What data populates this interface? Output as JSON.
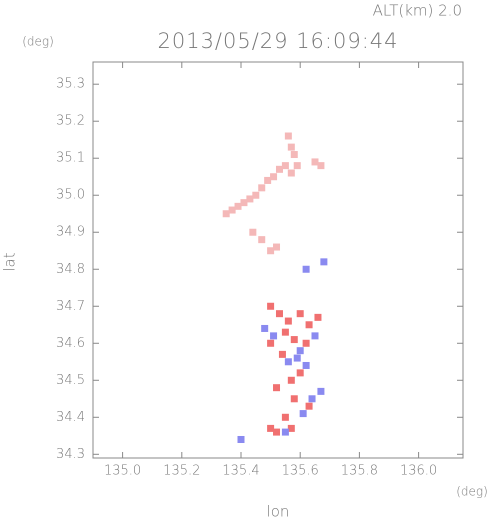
{
  "chart_data": {
    "type": "scatter",
    "title": "2013/05/29 16:09:44",
    "subtitle": "ALT(km) 2.0",
    "x_label": "lon",
    "y_label": "lat",
    "x_unit": "(deg)",
    "y_unit": "(deg)",
    "xlim": [
      134.9,
      136.15
    ],
    "ylim": [
      34.29,
      35.36
    ],
    "xticks": [
      {
        "value": 135,
        "label": "135.0"
      },
      {
        "value": 135.2,
        "label": "135.2"
      },
      {
        "value": 135.4,
        "label": "135.4"
      },
      {
        "value": 135.6,
        "label": "135.6"
      },
      {
        "value": 135.8,
        "label": "135.8"
      },
      {
        "value": 136,
        "label": "136.0"
      }
    ],
    "yticks": [
      34.3,
      34.4,
      34.5,
      34.6,
      34.7,
      34.8,
      34.9,
      {
        "value": 35,
        "label": "35.0"
      },
      35.1,
      35.2,
      35.3
    ],
    "series": [
      {
        "color": "#f4b8b8",
        "x": [
          135.56,
          135.57,
          135.58,
          135.59,
          135.55,
          135.57,
          135.53,
          135.51,
          135.49,
          135.47,
          135.45,
          135.43,
          135.41,
          135.39,
          135.37,
          135.35,
          135.65,
          135.67,
          135.44,
          135.47,
          135.5,
          135.52
        ],
        "y": [
          35.16,
          35.13,
          35.11,
          35.08,
          35.08,
          35.06,
          35.07,
          35.05,
          35.04,
          35.02,
          35.0,
          34.99,
          34.98,
          34.97,
          34.96,
          34.95,
          35.09,
          35.08,
          34.9,
          34.88,
          34.85,
          34.86
        ]
      },
      {
        "color": "#f07070",
        "x": [
          135.5,
          135.53,
          135.56,
          135.6,
          135.63,
          135.55,
          135.58,
          135.62,
          135.66,
          135.5,
          135.54,
          135.6,
          135.57,
          135.52,
          135.58,
          135.63,
          135.55,
          135.5,
          135.52,
          135.57
        ],
        "y": [
          34.7,
          34.68,
          34.66,
          34.68,
          34.65,
          34.63,
          34.61,
          34.6,
          34.67,
          34.6,
          34.57,
          34.52,
          34.5,
          34.48,
          34.45,
          34.43,
          34.4,
          34.37,
          34.36,
          34.37
        ]
      },
      {
        "color": "#8a8af0",
        "x": [
          135.48,
          135.51,
          135.59,
          135.62,
          135.65,
          135.56,
          135.64,
          135.61,
          135.67,
          135.4,
          135.68,
          135.62,
          135.55,
          135.6
        ],
        "y": [
          34.64,
          34.62,
          34.56,
          34.54,
          34.62,
          34.55,
          34.45,
          34.41,
          34.47,
          34.34,
          34.82,
          34.8,
          34.36,
          34.58
        ]
      }
    ]
  }
}
